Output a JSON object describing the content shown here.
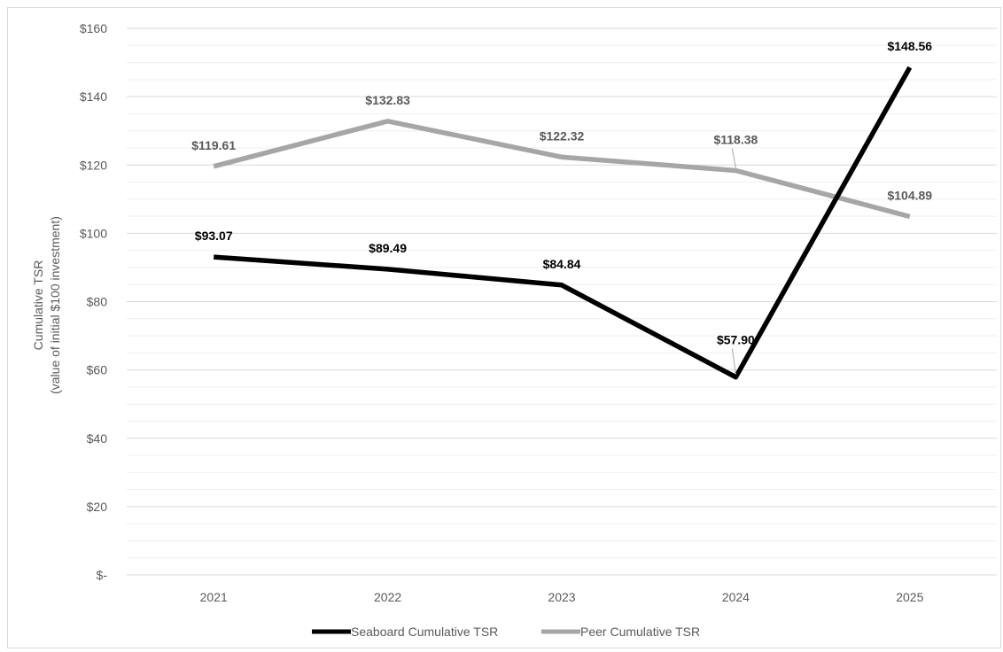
{
  "chart_data": {
    "type": "line",
    "title": "",
    "xlabel": "",
    "ylabel": "Cumulative TSR",
    "ylabel_sub": "(value of initial $100 investment)",
    "categories": [
      "2021",
      "2022",
      "2023",
      "2024",
      "2025"
    ],
    "ylim": [
      0,
      160
    ],
    "y_ticks": [
      0,
      20,
      40,
      60,
      80,
      100,
      120,
      140,
      160
    ],
    "y_tick_labels": [
      "$-",
      "$20",
      "$40",
      "$60",
      "$80",
      "$100",
      "$120",
      "$140",
      "$160"
    ],
    "grid": true,
    "legend_position": "bottom",
    "series": [
      {
        "name": "Seaboard Cumulative TSR",
        "values": [
          93.07,
          89.49,
          84.84,
          57.9,
          148.56
        ],
        "labels": [
          "$93.07",
          "$89.49",
          "$84.84",
          "$57.90",
          "$148.56"
        ],
        "color": "#000000"
      },
      {
        "name": "Peer Cumulative TSR",
        "values": [
          119.61,
          132.83,
          122.32,
          118.38,
          104.89
        ],
        "labels": [
          "$119.61",
          "$132.83",
          "$122.32",
          "$118.38",
          "$104.89"
        ],
        "color": "#a6a6a6"
      }
    ]
  }
}
